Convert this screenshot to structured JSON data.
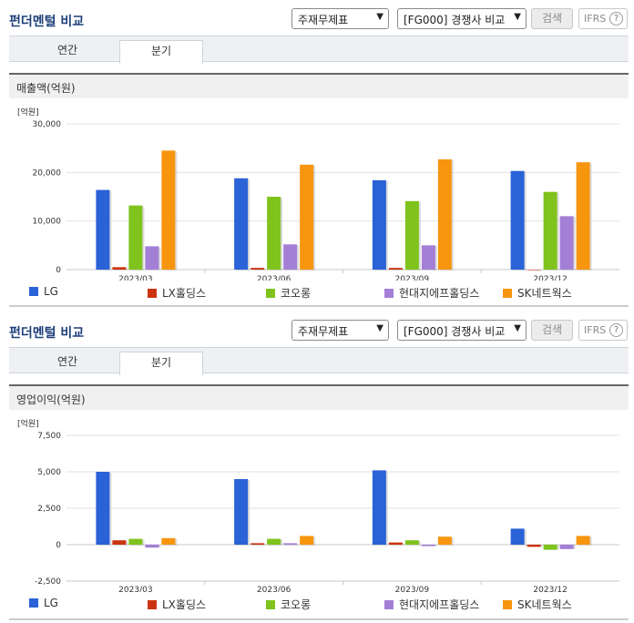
{
  "panels": [
    {
      "title": "펀더멘털 비교",
      "select1": "주재무제표",
      "select2": "[FG000] 경쟁사 비교",
      "search_label": "검색",
      "ifrs_label": "IFRS",
      "tabs": [
        "연간",
        "분기"
      ],
      "active_tab": "분기",
      "subtitle": "매출액(억원)"
    },
    {
      "title": "펀더멘털 비교",
      "select1": "주재무제표",
      "select2": "[FG000] 경쟁사 비교",
      "search_label": "검색",
      "ifrs_label": "IFRS",
      "tabs": [
        "연간",
        "분기"
      ],
      "active_tab": "분기",
      "subtitle": "영업이익(억원)"
    }
  ],
  "colors": {
    "LG": "#2a62d8",
    "LX홀딩스": "#cc3311",
    "코오롱": "#7fc31c",
    "현대지에프홀딩스": "#a47fd6",
    "SK네트웍스": "#f7950f"
  },
  "chart_data": [
    {
      "type": "bar",
      "unit_label": "[억원]",
      "categories": [
        "2023/03",
        "2023/06",
        "2023/09",
        "2023/12"
      ],
      "ylim": [
        0,
        30000
      ],
      "yticks": [
        0,
        10000,
        20000,
        30000
      ],
      "ytick_labels": [
        "0",
        "10,000",
        "20,000",
        "30,000"
      ],
      "grid": true,
      "legend_position": "bottom",
      "series": [
        {
          "name": "LG",
          "values": [
            16400,
            18800,
            18400,
            20300
          ]
        },
        {
          "name": "LX홀딩스",
          "values": [
            500,
            350,
            350,
            0
          ]
        },
        {
          "name": "코오롱",
          "values": [
            13200,
            15000,
            14100,
            16000
          ]
        },
        {
          "name": "현대지에프홀딩스",
          "values": [
            4800,
            5200,
            5000,
            11000
          ]
        },
        {
          "name": "SK네트웍스",
          "values": [
            24500,
            21600,
            22700,
            22100
          ]
        }
      ]
    },
    {
      "type": "bar",
      "unit_label": "[억원]",
      "categories": [
        "2023/03",
        "2023/06",
        "2023/09",
        "2023/12"
      ],
      "ylim": [
        -2500,
        7500
      ],
      "yticks": [
        -2500,
        0,
        2500,
        5000,
        7500
      ],
      "ytick_labels": [
        "-2,500",
        "0",
        "2,500",
        "5,000",
        "7,500"
      ],
      "grid": true,
      "legend_position": "bottom",
      "series": [
        {
          "name": "LG",
          "values": [
            5000,
            4500,
            5100,
            1100
          ]
        },
        {
          "name": "LX홀딩스",
          "values": [
            300,
            100,
            150,
            -150
          ]
        },
        {
          "name": "코오롱",
          "values": [
            400,
            400,
            300,
            -350
          ]
        },
        {
          "name": "현대지에프홀딩스",
          "values": [
            -200,
            100,
            -100,
            -300
          ]
        },
        {
          "name": "SK네트웍스",
          "values": [
            450,
            600,
            550,
            600
          ]
        }
      ]
    }
  ]
}
